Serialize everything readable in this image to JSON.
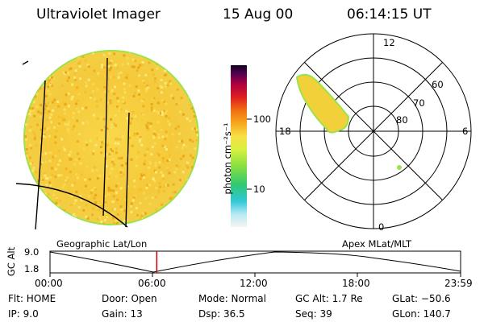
{
  "header": {
    "instrument": "Ultraviolet Imager",
    "date": "15 Aug 00",
    "time": "06:14:15 UT"
  },
  "colorbar": {
    "unit_label": "photon cm⁻²s⁻¹",
    "ticks": [
      "100",
      "10"
    ]
  },
  "polar_plot": {
    "mlt_labels": {
      "top": "12",
      "left": "18",
      "right": "6",
      "bottom": "0"
    },
    "lat_labels": [
      "60",
      "70",
      "80"
    ]
  },
  "captions": {
    "left": "Geographic Lat/Lon",
    "right": "Apex MLat/MLT"
  },
  "altitude_panel": {
    "ylabel": "GC Alt",
    "yticks": [
      "9.0",
      "1.8"
    ],
    "xticks": [
      "00:00",
      "06:00",
      "12:00",
      "18:00",
      "23:59"
    ],
    "current_fraction": 0.26
  },
  "footer": {
    "flt": "Flt: HOME",
    "ip": "IP:  9.0",
    "door": "Door: Open",
    "gain": "Gain: 13",
    "mode": "Mode: Normal",
    "dsp": "Dsp:    36.5",
    "gcalt": "GC Alt: 1.7 Re",
    "seq": "Seq: 39",
    "glat": "GLat: −50.6",
    "glon": "GLon: 140.7"
  },
  "colors": {
    "disk_fill": "#f6cd3a",
    "disk_edge": "#9ae34a",
    "aurora_fill": "#f2d03a",
    "time_marker": "#cc0000"
  }
}
